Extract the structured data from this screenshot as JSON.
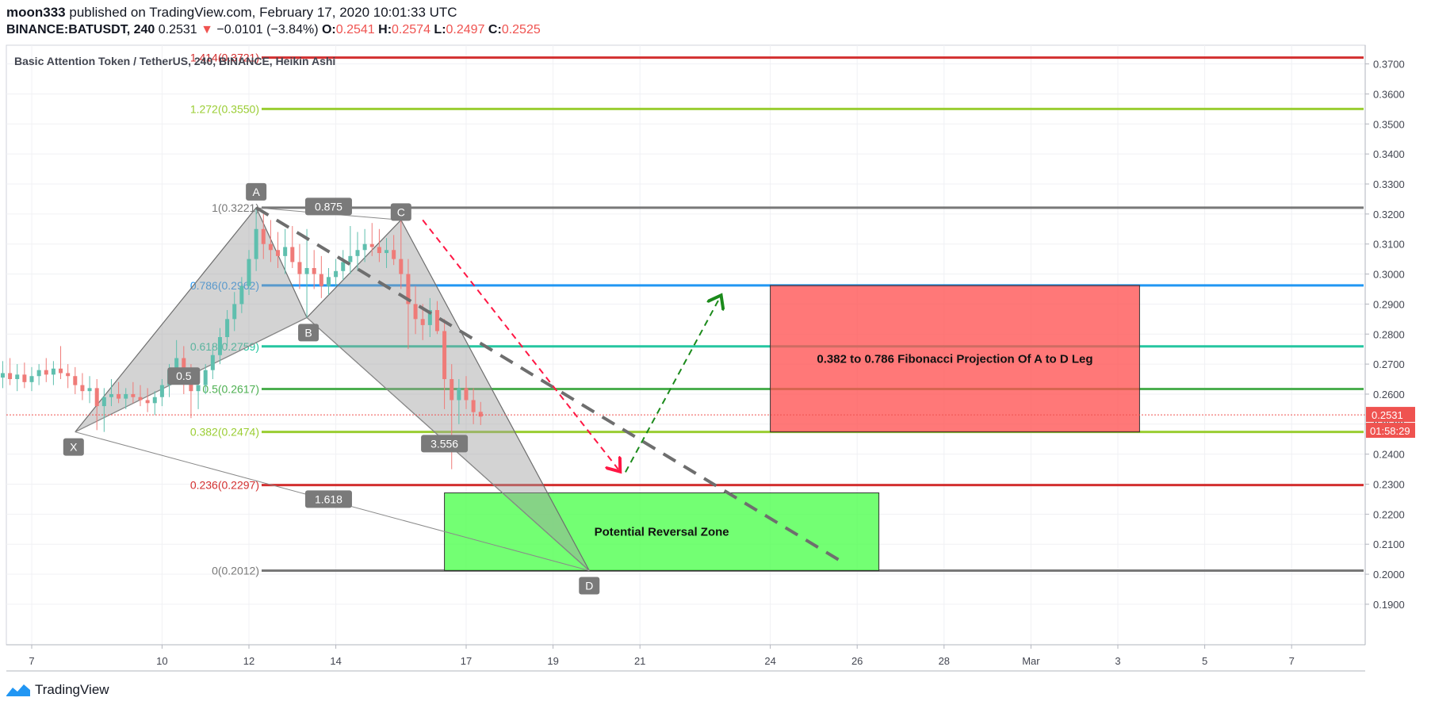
{
  "header": {
    "author": "moon333",
    "published_text": "published on TradingView.com, February 17, 2020 10:01:33 UTC",
    "symbol": "BINANCE:BATUSDT, 240",
    "price": "0.2531",
    "change_arrow": "▼",
    "change": "−0.0101 (−3.84%)",
    "o_label": "O:",
    "o_value": "0.2541",
    "h_label": "H:",
    "h_value": "0.2574",
    "l_label": "L:",
    "l_value": "0.2497",
    "c_label": "C:",
    "c_value": "0.2525"
  },
  "footer": {
    "brand": "TradingView",
    "icon": "tradingview-logo-icon"
  },
  "colors": {
    "up": "#26a69a",
    "down": "#ef5350",
    "fib_red": "#d32f2f",
    "fib_lime": "#9acd32",
    "fib_blue": "#2196f3",
    "fib_teal": "#26c6a0",
    "fib_green": "#4caf50",
    "fib_gray": "#787878",
    "prz_fill": "#4cff4c",
    "proj_fill": "#ff5252"
  },
  "chart_data": {
    "type": "candlestick",
    "title": "Basic Attention Token / TetherUS, 240, BINANCE, Heikin Ashi",
    "ylim": [
      0.182,
      0.377
    ],
    "xlim": [
      "2020-02-06",
      "2020-03-09"
    ],
    "y_ticks": [
      "0.3700",
      "0.3600",
      "0.3500",
      "0.3400",
      "0.3300",
      "0.3200",
      "0.3100",
      "0.3000",
      "0.2900",
      "0.2800",
      "0.2700",
      "0.2600",
      "0.2500",
      "0.2400",
      "0.2300",
      "0.2200",
      "0.2100",
      "0.2000",
      "0.1900"
    ],
    "x_ticks": [
      {
        "label": "7",
        "date": "2020-02-07"
      },
      {
        "label": "10",
        "date": "2020-02-10"
      },
      {
        "label": "12",
        "date": "2020-02-12"
      },
      {
        "label": "14",
        "date": "2020-02-14"
      },
      {
        "label": "17",
        "date": "2020-02-17"
      },
      {
        "label": "19",
        "date": "2020-02-19"
      },
      {
        "label": "21",
        "date": "2020-02-21"
      },
      {
        "label": "24",
        "date": "2020-02-24"
      },
      {
        "label": "26",
        "date": "2020-02-26"
      },
      {
        "label": "28",
        "date": "2020-02-28"
      },
      {
        "label": "Mar",
        "date": "2020-03-01"
      },
      {
        "label": "3",
        "date": "2020-03-03"
      },
      {
        "label": "5",
        "date": "2020-03-05"
      },
      {
        "label": "7",
        "date": "2020-03-07"
      }
    ],
    "last_price": {
      "value": 0.2531,
      "label": "0.2531",
      "countdown": "01:58:29"
    },
    "fib_levels": [
      {
        "level": "1.414",
        "price": 0.3721,
        "label": "1.414(0.3721)",
        "color": "#d32f2f"
      },
      {
        "level": "1.272",
        "price": 0.355,
        "label": "1.272(0.3550)",
        "color": "#9acd32"
      },
      {
        "level": "1",
        "price": 0.3221,
        "label": "1(0.3221)",
        "color": "#787878"
      },
      {
        "level": "0.786",
        "price": 0.2962,
        "label": "0.786(0.2962)",
        "color": "#2196f3"
      },
      {
        "level": "0.618",
        "price": 0.2759,
        "label": "0.618(0.2759)",
        "color": "#26c6a0"
      },
      {
        "level": "0.5",
        "price": 0.2617,
        "label": "0.5(0.2617)",
        "color": "#4caf50"
      },
      {
        "level": "0.382",
        "price": 0.2474,
        "label": "0.382(0.2474)",
        "color": "#9acd32"
      },
      {
        "level": "0.236",
        "price": 0.2297,
        "label": "0.236(0.2297)",
        "color": "#d32f2f"
      },
      {
        "level": "0",
        "price": 0.2012,
        "label": "0(0.2012)",
        "color": "#787878"
      }
    ],
    "pattern_points": [
      {
        "name": "X",
        "date": "2020-02-08T00:00",
        "price": 0.2474
      },
      {
        "name": "A",
        "date": "2020-02-12T04:00",
        "price": 0.3221
      },
      {
        "name": "B",
        "date": "2020-02-13T08:00",
        "price": 0.2855
      },
      {
        "name": "C",
        "date": "2020-02-15T12:00",
        "price": 0.318
      },
      {
        "name": "D",
        "date": "2020-02-19T20:00",
        "price": 0.2012
      }
    ],
    "ratio_labels": [
      {
        "text": "0.5",
        "date": "2020-02-10T12:00",
        "price": 0.266
      },
      {
        "text": "0.875",
        "date": "2020-02-13T20:00",
        "price": 0.3225
      },
      {
        "text": "3.556",
        "date": "2020-02-16T12:00",
        "price": 0.2435
      },
      {
        "text": "1.618",
        "date": "2020-02-13T20:00",
        "price": 0.225
      }
    ],
    "zones": [
      {
        "label": "Potential Reversal Zone",
        "date_from": "2020-02-16T12:00",
        "date_to": "2020-02-26T12:00",
        "price_from": 0.2012,
        "price_to": 0.2271,
        "fill": "#4cff4c"
      },
      {
        "label": "0.382 to 0.786 Fibonacci Projection Of A to D Leg",
        "date_from": "2020-02-24T00:00",
        "date_to": "2020-03-03T12:00",
        "price_from": 0.2474,
        "price_to": 0.2962,
        "fill": "#ff5252"
      }
    ],
    "trend_lines": [
      {
        "style": "gray-dashed",
        "from": {
          "date": "2020-02-12T04:00",
          "price": 0.3221
        },
        "to": {
          "date": "2020-02-25T16:00",
          "price": 0.204
        }
      },
      {
        "style": "red-dashed",
        "from": {
          "date": "2020-02-16T00:00",
          "price": 0.318
        },
        "to": {
          "date": "2020-02-20T12:00",
          "price": 0.235
        },
        "arrow": true
      },
      {
        "style": "green-dashed",
        "from": {
          "date": "2020-02-20T16:00",
          "price": 0.234
        },
        "to": {
          "date": "2020-02-22T20:00",
          "price": 0.292
        },
        "arrow": true
      }
    ],
    "candles": [
      {
        "t": "2020-02-06T00:00",
        "o": 0.266,
        "h": 0.27,
        "l": 0.258,
        "c": 0.264
      },
      {
        "t": "2020-02-06T04:00",
        "o": 0.264,
        "h": 0.269,
        "l": 0.26,
        "c": 0.2655
      },
      {
        "t": "2020-02-06T08:00",
        "o": 0.2655,
        "h": 0.271,
        "l": 0.262,
        "c": 0.267
      },
      {
        "t": "2020-02-06T12:00",
        "o": 0.267,
        "h": 0.272,
        "l": 0.263,
        "c": 0.265
      },
      {
        "t": "2020-02-06T16:00",
        "o": 0.265,
        "h": 0.27,
        "l": 0.261,
        "c": 0.2665
      },
      {
        "t": "2020-02-06T20:00",
        "o": 0.2665,
        "h": 0.2705,
        "l": 0.262,
        "c": 0.264
      },
      {
        "t": "2020-02-07T00:00",
        "o": 0.264,
        "h": 0.269,
        "l": 0.261,
        "c": 0.266
      },
      {
        "t": "2020-02-07T04:00",
        "o": 0.266,
        "h": 0.27,
        "l": 0.263,
        "c": 0.268
      },
      {
        "t": "2020-02-07T08:00",
        "o": 0.268,
        "h": 0.272,
        "l": 0.264,
        "c": 0.2665
      },
      {
        "t": "2020-02-07T12:00",
        "o": 0.2665,
        "h": 0.271,
        "l": 0.263,
        "c": 0.2685
      },
      {
        "t": "2020-02-07T16:00",
        "o": 0.2685,
        "h": 0.276,
        "l": 0.265,
        "c": 0.267
      },
      {
        "t": "2020-02-07T20:00",
        "o": 0.267,
        "h": 0.27,
        "l": 0.262,
        "c": 0.266
      },
      {
        "t": "2020-02-08T00:00",
        "o": 0.266,
        "h": 0.269,
        "l": 0.26,
        "c": 0.263
      },
      {
        "t": "2020-02-08T04:00",
        "o": 0.263,
        "h": 0.267,
        "l": 0.258,
        "c": 0.261
      },
      {
        "t": "2020-02-08T08:00",
        "o": 0.261,
        "h": 0.266,
        "l": 0.257,
        "c": 0.262
      },
      {
        "t": "2020-02-08T12:00",
        "o": 0.262,
        "h": 0.265,
        "l": 0.248,
        "c": 0.256
      },
      {
        "t": "2020-02-08T16:00",
        "o": 0.256,
        "h": 0.262,
        "l": 0.2474,
        "c": 0.259
      },
      {
        "t": "2020-02-08T20:00",
        "o": 0.259,
        "h": 0.265,
        "l": 0.256,
        "c": 0.26
      },
      {
        "t": "2020-02-09T00:00",
        "o": 0.26,
        "h": 0.264,
        "l": 0.257,
        "c": 0.2585
      },
      {
        "t": "2020-02-09T04:00",
        "o": 0.2585,
        "h": 0.262,
        "l": 0.255,
        "c": 0.26
      },
      {
        "t": "2020-02-09T08:00",
        "o": 0.26,
        "h": 0.264,
        "l": 0.257,
        "c": 0.259
      },
      {
        "t": "2020-02-09T12:00",
        "o": 0.259,
        "h": 0.263,
        "l": 0.256,
        "c": 0.258
      },
      {
        "t": "2020-02-09T16:00",
        "o": 0.258,
        "h": 0.262,
        "l": 0.254,
        "c": 0.257
      },
      {
        "t": "2020-02-09T20:00",
        "o": 0.257,
        "h": 0.261,
        "l": 0.253,
        "c": 0.259
      },
      {
        "t": "2020-02-10T00:00",
        "o": 0.259,
        "h": 0.265,
        "l": 0.256,
        "c": 0.263
      },
      {
        "t": "2020-02-10T04:00",
        "o": 0.263,
        "h": 0.27,
        "l": 0.259,
        "c": 0.268
      },
      {
        "t": "2020-02-10T08:00",
        "o": 0.268,
        "h": 0.278,
        "l": 0.265,
        "c": 0.272
      },
      {
        "t": "2020-02-10T12:00",
        "o": 0.272,
        "h": 0.276,
        "l": 0.26,
        "c": 0.265
      },
      {
        "t": "2020-02-10T16:00",
        "o": 0.265,
        "h": 0.27,
        "l": 0.252,
        "c": 0.261
      },
      {
        "t": "2020-02-10T20:00",
        "o": 0.261,
        "h": 0.266,
        "l": 0.255,
        "c": 0.263
      },
      {
        "t": "2020-02-11T00:00",
        "o": 0.263,
        "h": 0.27,
        "l": 0.26,
        "c": 0.268
      },
      {
        "t": "2020-02-11T04:00",
        "o": 0.268,
        "h": 0.276,
        "l": 0.265,
        "c": 0.273
      },
      {
        "t": "2020-02-11T08:00",
        "o": 0.273,
        "h": 0.282,
        "l": 0.27,
        "c": 0.279
      },
      {
        "t": "2020-02-11T12:00",
        "o": 0.279,
        "h": 0.288,
        "l": 0.276,
        "c": 0.285
      },
      {
        "t": "2020-02-11T16:00",
        "o": 0.285,
        "h": 0.294,
        "l": 0.281,
        "c": 0.29
      },
      {
        "t": "2020-02-11T20:00",
        "o": 0.29,
        "h": 0.299,
        "l": 0.287,
        "c": 0.296
      },
      {
        "t": "2020-02-12T00:00",
        "o": 0.296,
        "h": 0.308,
        "l": 0.293,
        "c": 0.305
      },
      {
        "t": "2020-02-12T04:00",
        "o": 0.305,
        "h": 0.3221,
        "l": 0.301,
        "c": 0.315
      },
      {
        "t": "2020-02-12T08:00",
        "o": 0.315,
        "h": 0.32,
        "l": 0.305,
        "c": 0.31
      },
      {
        "t": "2020-02-12T12:00",
        "o": 0.31,
        "h": 0.318,
        "l": 0.304,
        "c": 0.308
      },
      {
        "t": "2020-02-12T16:00",
        "o": 0.308,
        "h": 0.314,
        "l": 0.302,
        "c": 0.306
      },
      {
        "t": "2020-02-12T20:00",
        "o": 0.306,
        "h": 0.315,
        "l": 0.3,
        "c": 0.309
      },
      {
        "t": "2020-02-13T00:00",
        "o": 0.309,
        "h": 0.316,
        "l": 0.302,
        "c": 0.304
      },
      {
        "t": "2020-02-13T04:00",
        "o": 0.304,
        "h": 0.31,
        "l": 0.295,
        "c": 0.3
      },
      {
        "t": "2020-02-13T08:00",
        "o": 0.3,
        "h": 0.315,
        "l": 0.2855,
        "c": 0.302
      },
      {
        "t": "2020-02-13T12:00",
        "o": 0.302,
        "h": 0.308,
        "l": 0.295,
        "c": 0.3
      },
      {
        "t": "2020-02-13T16:00",
        "o": 0.3,
        "h": 0.306,
        "l": 0.292,
        "c": 0.296
      },
      {
        "t": "2020-02-13T20:00",
        "o": 0.296,
        "h": 0.302,
        "l": 0.293,
        "c": 0.299
      },
      {
        "t": "2020-02-14T00:00",
        "o": 0.299,
        "h": 0.305,
        "l": 0.296,
        "c": 0.301
      },
      {
        "t": "2020-02-14T04:00",
        "o": 0.301,
        "h": 0.308,
        "l": 0.298,
        "c": 0.304
      },
      {
        "t": "2020-02-14T08:00",
        "o": 0.304,
        "h": 0.316,
        "l": 0.3,
        "c": 0.306
      },
      {
        "t": "2020-02-14T12:00",
        "o": 0.306,
        "h": 0.314,
        "l": 0.301,
        "c": 0.308
      },
      {
        "t": "2020-02-14T16:00",
        "o": 0.308,
        "h": 0.315,
        "l": 0.304,
        "c": 0.31
      },
      {
        "t": "2020-02-14T20:00",
        "o": 0.31,
        "h": 0.317,
        "l": 0.306,
        "c": 0.309
      },
      {
        "t": "2020-02-15T00:00",
        "o": 0.309,
        "h": 0.315,
        "l": 0.304,
        "c": 0.307
      },
      {
        "t": "2020-02-15T04:00",
        "o": 0.307,
        "h": 0.312,
        "l": 0.302,
        "c": 0.308
      },
      {
        "t": "2020-02-15T08:00",
        "o": 0.308,
        "h": 0.313,
        "l": 0.303,
        "c": 0.305
      },
      {
        "t": "2020-02-15T12:00",
        "o": 0.305,
        "h": 0.318,
        "l": 0.295,
        "c": 0.3
      },
      {
        "t": "2020-02-15T16:00",
        "o": 0.3,
        "h": 0.305,
        "l": 0.275,
        "c": 0.29
      },
      {
        "t": "2020-02-15T20:00",
        "o": 0.29,
        "h": 0.296,
        "l": 0.28,
        "c": 0.285
      },
      {
        "t": "2020-02-16T00:00",
        "o": 0.285,
        "h": 0.29,
        "l": 0.278,
        "c": 0.283
      },
      {
        "t": "2020-02-16T04:00",
        "o": 0.283,
        "h": 0.292,
        "l": 0.279,
        "c": 0.288
      },
      {
        "t": "2020-02-16T08:00",
        "o": 0.288,
        "h": 0.291,
        "l": 0.28,
        "c": 0.281
      },
      {
        "t": "2020-02-16T12:00",
        "o": 0.281,
        "h": 0.285,
        "l": 0.255,
        "c": 0.265
      },
      {
        "t": "2020-02-16T16:00",
        "o": 0.265,
        "h": 0.27,
        "l": 0.235,
        "c": 0.258
      },
      {
        "t": "2020-02-16T20:00",
        "o": 0.258,
        "h": 0.265,
        "l": 0.25,
        "c": 0.262
      },
      {
        "t": "2020-02-17T00:00",
        "o": 0.262,
        "h": 0.266,
        "l": 0.255,
        "c": 0.258
      },
      {
        "t": "2020-02-17T04:00",
        "o": 0.258,
        "h": 0.262,
        "l": 0.25,
        "c": 0.254
      },
      {
        "t": "2020-02-17T08:00",
        "o": 0.2541,
        "h": 0.2574,
        "l": 0.2497,
        "c": 0.2525
      }
    ]
  }
}
